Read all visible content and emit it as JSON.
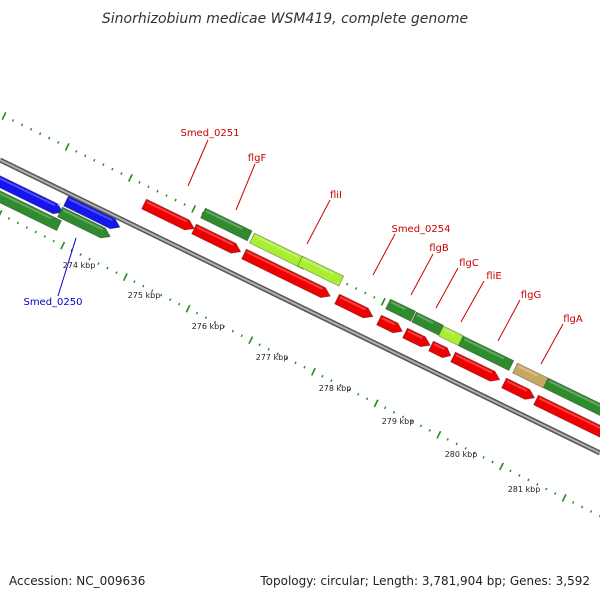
{
  "title": "Sinorhizobium medicae WSM419, complete genome",
  "footer": {
    "accession": "Accession: NC_009636",
    "summary": "Topology: circular; Length: 3,781,904 bp; Genes: 3,592"
  },
  "colors": {
    "forward_cds": "#2e8b2e",
    "reverse_cds": "#ee0000",
    "blue_cds": "#1515ee",
    "lime_cds": "#aaee33",
    "khaki_cds": "#c8a860",
    "backbone": "#8a8a8a",
    "ticks": "#228b22",
    "label_red": "#cc0000",
    "label_blue": "#0000cc"
  },
  "axis": {
    "tick_labels": [
      "274 kbp",
      "275 kbp",
      "276 kbp",
      "277 kbp",
      "278 kbp",
      "279 kbp",
      "280 kbp",
      "281 kbp"
    ]
  },
  "genes": [
    {
      "name": "Smed_0250",
      "color": "blue"
    },
    {
      "name": "Smed_0251",
      "color": "red"
    },
    {
      "name": "flgF",
      "color": "red"
    },
    {
      "name": "fliI",
      "color": "red"
    },
    {
      "name": "Smed_0254",
      "color": "red"
    },
    {
      "name": "flgB",
      "color": "red"
    },
    {
      "name": "flgC",
      "color": "red"
    },
    {
      "name": "fliE",
      "color": "red"
    },
    {
      "name": "flgG",
      "color": "red"
    },
    {
      "name": "flgA",
      "color": "red"
    }
  ]
}
